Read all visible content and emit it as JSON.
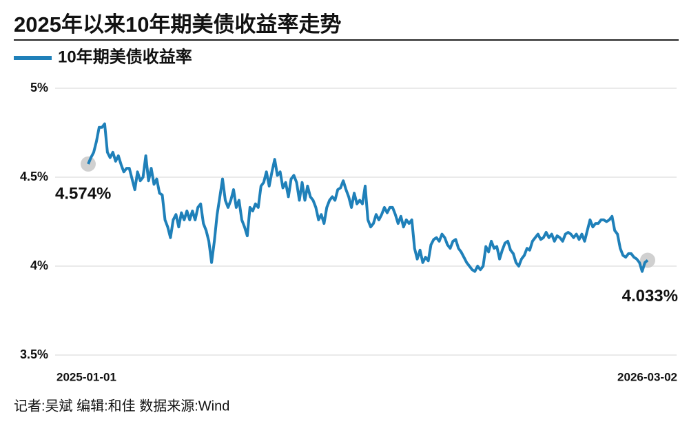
{
  "chart_data": {
    "type": "line",
    "title": "2025年以来10年期美债收益率走势",
    "source": "记者:吴斌  编辑:和佳  数据来源:Wind",
    "categories": [
      "2025-01-01",
      null,
      null,
      null,
      null,
      null,
      null,
      null,
      null,
      null,
      null,
      null,
      null,
      null,
      null,
      null,
      null,
      null,
      null,
      null,
      null,
      null,
      null,
      null,
      null,
      null,
      null,
      null,
      null,
      null,
      null,
      null,
      null,
      null,
      null,
      null,
      null,
      null,
      null,
      null,
      null,
      null,
      null,
      null,
      null,
      null,
      null,
      null,
      null,
      null,
      null,
      null,
      null,
      null,
      null,
      null,
      null,
      null,
      null,
      null,
      null,
      null,
      null,
      null,
      null,
      null,
      null,
      null,
      null,
      null,
      null,
      null,
      null,
      null,
      null,
      null,
      null,
      null,
      null,
      null,
      null,
      null,
      null,
      null,
      null,
      null,
      null,
      null,
      null,
      null,
      null,
      null,
      null,
      null,
      null,
      null,
      null,
      null,
      null,
      null,
      null,
      null,
      null,
      null,
      null,
      null,
      null,
      null,
      null,
      null,
      null,
      null,
      null,
      null,
      null,
      null,
      null,
      null,
      null,
      null,
      null,
      null,
      null,
      null,
      null,
      null,
      null,
      null,
      null,
      null,
      null,
      null,
      null,
      null,
      null,
      null,
      null,
      null,
      null,
      null,
      null,
      null,
      null,
      null,
      null,
      null,
      null,
      null,
      null,
      null,
      null,
      null,
      null,
      null,
      null,
      null,
      null,
      null,
      null,
      null,
      null,
      null,
      null,
      null,
      null,
      null,
      null,
      null,
      null,
      null,
      null,
      null,
      null,
      null,
      null,
      null,
      null,
      null,
      null,
      null,
      null,
      null,
      null,
      null,
      null,
      null,
      null,
      null,
      null,
      null,
      null,
      null,
      null,
      null,
      null,
      null,
      null,
      null,
      null,
      null,
      null,
      null,
      null,
      null,
      "2026-03-02"
    ],
    "series": [
      {
        "name": "10年期美债收益率",
        "color": "#1f80b9",
        "values": [
          4.574,
          4.61,
          4.64,
          4.7,
          4.78,
          4.78,
          4.8,
          4.64,
          4.61,
          4.64,
          4.59,
          4.62,
          4.57,
          4.53,
          4.55,
          4.55,
          4.49,
          4.43,
          4.53,
          4.48,
          4.5,
          4.62,
          4.48,
          4.55,
          4.46,
          4.49,
          4.41,
          4.4,
          4.26,
          4.22,
          4.16,
          4.26,
          4.29,
          4.22,
          4.3,
          4.26,
          4.31,
          4.26,
          4.31,
          4.26,
          4.33,
          4.35,
          4.24,
          4.2,
          4.14,
          4.02,
          4.14,
          4.29,
          4.39,
          4.49,
          4.37,
          4.33,
          4.37,
          4.43,
          4.33,
          4.37,
          4.26,
          4.22,
          4.17,
          4.33,
          4.31,
          4.35,
          4.33,
          4.45,
          4.47,
          4.53,
          4.45,
          4.53,
          4.6,
          4.51,
          4.53,
          4.44,
          4.47,
          4.39,
          4.49,
          4.51,
          4.47,
          4.37,
          4.47,
          4.37,
          4.45,
          4.39,
          4.37,
          4.33,
          4.26,
          4.29,
          4.24,
          4.33,
          4.37,
          4.39,
          4.37,
          4.43,
          4.44,
          4.48,
          4.43,
          4.39,
          4.33,
          4.41,
          4.35,
          4.37,
          4.35,
          4.45,
          4.26,
          4.22,
          4.24,
          4.29,
          4.26,
          4.29,
          4.33,
          4.3,
          4.33,
          4.33,
          4.29,
          4.24,
          4.28,
          4.22,
          4.26,
          4.24,
          4.26,
          4.1,
          4.04,
          4.09,
          4.02,
          4.05,
          4.03,
          4.12,
          4.15,
          4.16,
          4.14,
          4.18,
          4.16,
          4.12,
          4.1,
          4.14,
          4.15,
          4.1,
          4.08,
          4.05,
          4.02,
          4.0,
          3.98,
          3.97,
          4.0,
          3.98,
          4.0,
          4.11,
          4.08,
          4.14,
          4.1,
          4.11,
          4.04,
          4.09,
          4.13,
          4.14,
          4.09,
          4.07,
          4.02,
          4.0,
          4.04,
          4.06,
          4.1,
          4.09,
          4.14,
          4.16,
          4.18,
          4.15,
          4.16,
          4.19,
          4.16,
          4.18,
          4.14,
          4.17,
          4.16,
          4.14,
          4.18,
          4.19,
          4.18,
          4.16,
          4.18,
          4.15,
          4.18,
          4.14,
          4.2,
          4.26,
          4.22,
          4.24,
          4.24,
          4.26,
          4.26,
          4.25,
          4.26,
          4.28,
          4.2,
          4.18,
          4.1,
          4.06,
          4.05,
          4.07,
          4.07,
          4.05,
          4.04,
          4.02,
          3.97,
          4.02,
          4.033
        ],
        "value_labels": [
          "4.574%",
          null,
          null,
          null,
          null,
          null,
          null,
          null,
          null,
          null,
          null,
          null,
          null,
          null,
          null,
          null,
          null,
          null,
          null,
          null,
          null,
          null,
          null,
          null,
          null,
          null,
          null,
          null,
          null,
          null,
          null,
          null,
          null,
          null,
          null,
          null,
          null,
          null,
          null,
          null,
          null,
          null,
          null,
          null,
          null,
          null,
          null,
          null,
          null,
          null,
          null,
          null,
          null,
          null,
          null,
          null,
          null,
          null,
          null,
          null,
          null,
          null,
          null,
          null,
          null,
          null,
          null,
          null,
          null,
          null,
          null,
          null,
          null,
          null,
          null,
          null,
          null,
          null,
          null,
          null,
          null,
          null,
          null,
          null,
          null,
          null,
          null,
          null,
          null,
          null,
          null,
          null,
          null,
          null,
          null,
          null,
          null,
          null,
          null,
          null,
          null,
          null,
          null,
          null,
          null,
          null,
          null,
          null,
          null,
          null,
          null,
          null,
          null,
          null,
          null,
          null,
          null,
          null,
          null,
          null,
          null,
          null,
          null,
          null,
          null,
          null,
          null,
          null,
          null,
          null,
          null,
          null,
          null,
          null,
          null,
          null,
          null,
          null,
          null,
          null,
          null,
          null,
          null,
          null,
          null,
          null,
          null,
          null,
          null,
          null,
          null,
          null,
          null,
          null,
          null,
          null,
          null,
          null,
          null,
          null,
          null,
          null,
          null,
          null,
          null,
          null,
          null,
          null,
          null,
          null,
          null,
          null,
          null,
          null,
          null,
          null,
          null,
          null,
          null,
          null,
          null,
          null,
          null,
          null,
          null,
          null,
          null,
          null,
          null,
          null,
          null,
          null,
          null,
          null,
          null,
          null,
          null,
          null,
          null,
          null,
          null,
          null,
          null,
          null,
          "4.033%"
        ]
      }
    ],
    "ylim": [
      3.5,
      5
    ],
    "yticks": [
      {
        "value": 3.5,
        "label": "3.5%"
      },
      {
        "value": 4,
        "label": "4%"
      },
      {
        "value": 4.5,
        "label": "4.5%"
      },
      {
        "value": 5,
        "label": "5%"
      }
    ],
    "grid": true
  }
}
